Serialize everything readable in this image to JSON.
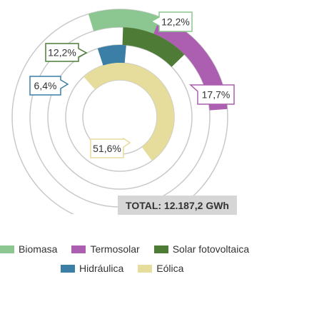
{
  "chart_data": {
    "type": "pie",
    "title": "",
    "total_label": "TOTAL: 12.187,2 GWh",
    "series": [
      {
        "name": "Biomasa",
        "value": 12.2,
        "label": "12,2%",
        "color": "#8cc690"
      },
      {
        "name": "Termosolar",
        "value": 17.7,
        "label": "17,7%",
        "color": "#ac5fb0"
      },
      {
        "name": "Solar fotovoltaica",
        "value": 12.2,
        "label": "12,2%",
        "color": "#4e7c37"
      },
      {
        "name": "Hidráulica",
        "value": 6.4,
        "label": "6,4%",
        "color": "#3b7ea6"
      },
      {
        "name": "Eólica",
        "value": 51.6,
        "label": "51,6%",
        "color": "#e6dc9c"
      }
    ],
    "legend_position": "bottom"
  }
}
